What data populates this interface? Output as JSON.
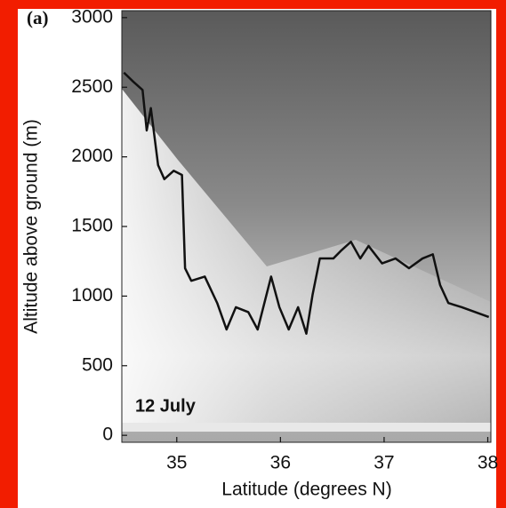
{
  "chart_data": {
    "type": "line",
    "panel_label": "(a)",
    "annotation": "12 July",
    "x_label": "Latitude (degrees N)",
    "y_label": "Altitude above ground (m)",
    "xlim": [
      34.47,
      38.03
    ],
    "ylim": [
      -50,
      3050
    ],
    "xticks": [
      35,
      36,
      37,
      38
    ],
    "yticks": [
      0,
      500,
      1000,
      1500,
      2000,
      2500,
      3000
    ],
    "series": [
      {
        "color": "#111111",
        "x": [
          34.49,
          34.58,
          34.67,
          34.71,
          34.75,
          34.82,
          34.88,
          34.97,
          35.05,
          35.08,
          35.14,
          35.27,
          35.39,
          35.48,
          35.57,
          35.69,
          35.78,
          35.91,
          35.99,
          36.08,
          36.17,
          36.25,
          36.31,
          36.38,
          36.51,
          36.59,
          36.68,
          36.77,
          36.85,
          36.98,
          37.11,
          37.24,
          37.37,
          37.47,
          37.54,
          37.62,
          37.75,
          37.88,
          38.01
        ],
        "values": [
          2605,
          2540,
          2480,
          2190,
          2350,
          1940,
          1840,
          1900,
          1870,
          1200,
          1110,
          1140,
          950,
          760,
          920,
          885,
          760,
          1140,
          920,
          760,
          920,
          730,
          1010,
          1270,
          1270,
          1330,
          1390,
          1270,
          1360,
          1235,
          1270,
          1200,
          1270,
          1300,
          1080,
          950,
          920,
          885,
          850
        ]
      }
    ]
  }
}
